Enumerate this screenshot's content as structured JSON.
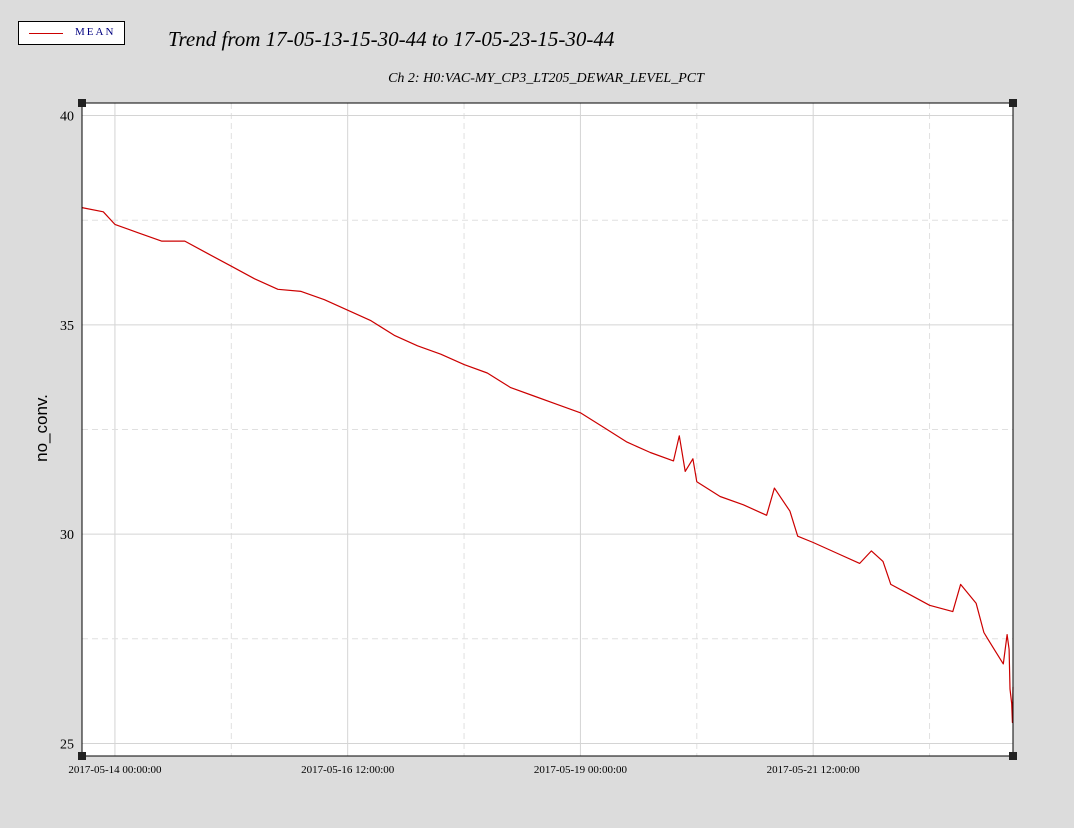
{
  "legend": {
    "label": "MEAN",
    "color": "#cc0000"
  },
  "header": {
    "title": "Trend from 17-05-13-15-30-44 to 17-05-23-15-30-44"
  },
  "chart_data": {
    "type": "line",
    "title": "Ch 2: H0:VAC-MY_CP3_LT205_DEWAR_LEVEL_PCT",
    "xlabel": "",
    "ylabel": "no_conv.",
    "x_range": [
      "2017-05-13 15:30:44",
      "2017-05-23 15:30:44"
    ],
    "ylim": [
      24.7,
      40.3
    ],
    "y_ticks": [
      25,
      30,
      35,
      40
    ],
    "y_tick_labels": [
      "25",
      "30",
      "35",
      "40"
    ],
    "x_ticks": [
      "2017-05-14 00:00:00",
      "2017-05-15 06:00:00",
      "2017-05-16 12:00:00",
      "2017-05-17 18:00:00",
      "2017-05-19 00:00:00",
      "2017-05-20 06:00:00",
      "2017-05-21 12:00:00",
      "2017-05-22 18:00:00"
    ],
    "x_tick_labels": [
      "2017-05-14 00:00:00",
      "",
      "2017-05-16 12:00:00",
      "",
      "2017-05-19 00:00:00",
      "",
      "2017-05-21 12:00:00",
      ""
    ],
    "grid": true,
    "legend_position": "top-left",
    "series": [
      {
        "name": "MEAN",
        "color": "#cc0000",
        "points": [
          [
            "2017-05-13 15:30:44",
            37.8
          ],
          [
            "2017-05-13 21:00:00",
            37.7
          ],
          [
            "2017-05-14 00:00:00",
            37.4
          ],
          [
            "2017-05-14 06:00:00",
            37.2
          ],
          [
            "2017-05-14 12:00:00",
            37.0
          ],
          [
            "2017-05-14 18:00:00",
            37.0
          ],
          [
            "2017-05-15 00:00:00",
            36.7
          ],
          [
            "2017-05-15 06:00:00",
            36.4
          ],
          [
            "2017-05-15 12:00:00",
            36.1
          ],
          [
            "2017-05-15 18:00:00",
            35.85
          ],
          [
            "2017-05-16 00:00:00",
            35.8
          ],
          [
            "2017-05-16 06:00:00",
            35.6
          ],
          [
            "2017-05-16 12:00:00",
            35.35
          ],
          [
            "2017-05-16 18:00:00",
            35.1
          ],
          [
            "2017-05-17 00:00:00",
            34.75
          ],
          [
            "2017-05-17 06:00:00",
            34.5
          ],
          [
            "2017-05-17 12:00:00",
            34.3
          ],
          [
            "2017-05-17 18:00:00",
            34.05
          ],
          [
            "2017-05-18 00:00:00",
            33.85
          ],
          [
            "2017-05-18 06:00:00",
            33.5
          ],
          [
            "2017-05-18 12:00:00",
            33.3
          ],
          [
            "2017-05-18 18:00:00",
            33.1
          ],
          [
            "2017-05-19 00:00:00",
            32.9
          ],
          [
            "2017-05-19 06:00:00",
            32.55
          ],
          [
            "2017-05-19 12:00:00",
            32.2
          ],
          [
            "2017-05-19 18:00:00",
            31.95
          ],
          [
            "2017-05-20 00:00:00",
            31.75
          ],
          [
            "2017-05-20 01:30:00",
            32.35
          ],
          [
            "2017-05-20 03:00:00",
            31.5
          ],
          [
            "2017-05-20 05:00:00",
            31.8
          ],
          [
            "2017-05-20 06:00:00",
            31.25
          ],
          [
            "2017-05-20 12:00:00",
            30.9
          ],
          [
            "2017-05-20 18:00:00",
            30.7
          ],
          [
            "2017-05-21 00:00:00",
            30.45
          ],
          [
            "2017-05-21 02:00:00",
            31.1
          ],
          [
            "2017-05-21 06:00:00",
            30.55
          ],
          [
            "2017-05-21 08:00:00",
            29.95
          ],
          [
            "2017-05-21 12:00:00",
            29.8
          ],
          [
            "2017-05-21 18:00:00",
            29.55
          ],
          [
            "2017-05-22 00:00:00",
            29.3
          ],
          [
            "2017-05-22 03:00:00",
            29.6
          ],
          [
            "2017-05-22 06:00:00",
            29.35
          ],
          [
            "2017-05-22 08:00:00",
            28.8
          ],
          [
            "2017-05-22 12:00:00",
            28.6
          ],
          [
            "2017-05-22 18:00:00",
            28.3
          ],
          [
            "2017-05-23 00:00:00",
            28.15
          ],
          [
            "2017-05-23 02:00:00",
            28.8
          ],
          [
            "2017-05-23 06:00:00",
            28.35
          ],
          [
            "2017-05-23 08:00:00",
            27.65
          ],
          [
            "2017-05-23 09:00:00",
            27.5
          ],
          [
            "2017-05-23 11:00:00",
            27.2
          ],
          [
            "2017-05-23 13:00:00",
            26.9
          ],
          [
            "2017-05-23 14:00:00",
            27.6
          ],
          [
            "2017-05-23 14:30:00",
            27.25
          ],
          [
            "2017-05-23 14:45:00",
            26.3
          ],
          [
            "2017-05-23 15:10:00",
            25.95
          ],
          [
            "2017-05-23 15:22:00",
            25.5
          ],
          [
            "2017-05-23 15:30:44",
            26.35
          ]
        ]
      }
    ]
  }
}
